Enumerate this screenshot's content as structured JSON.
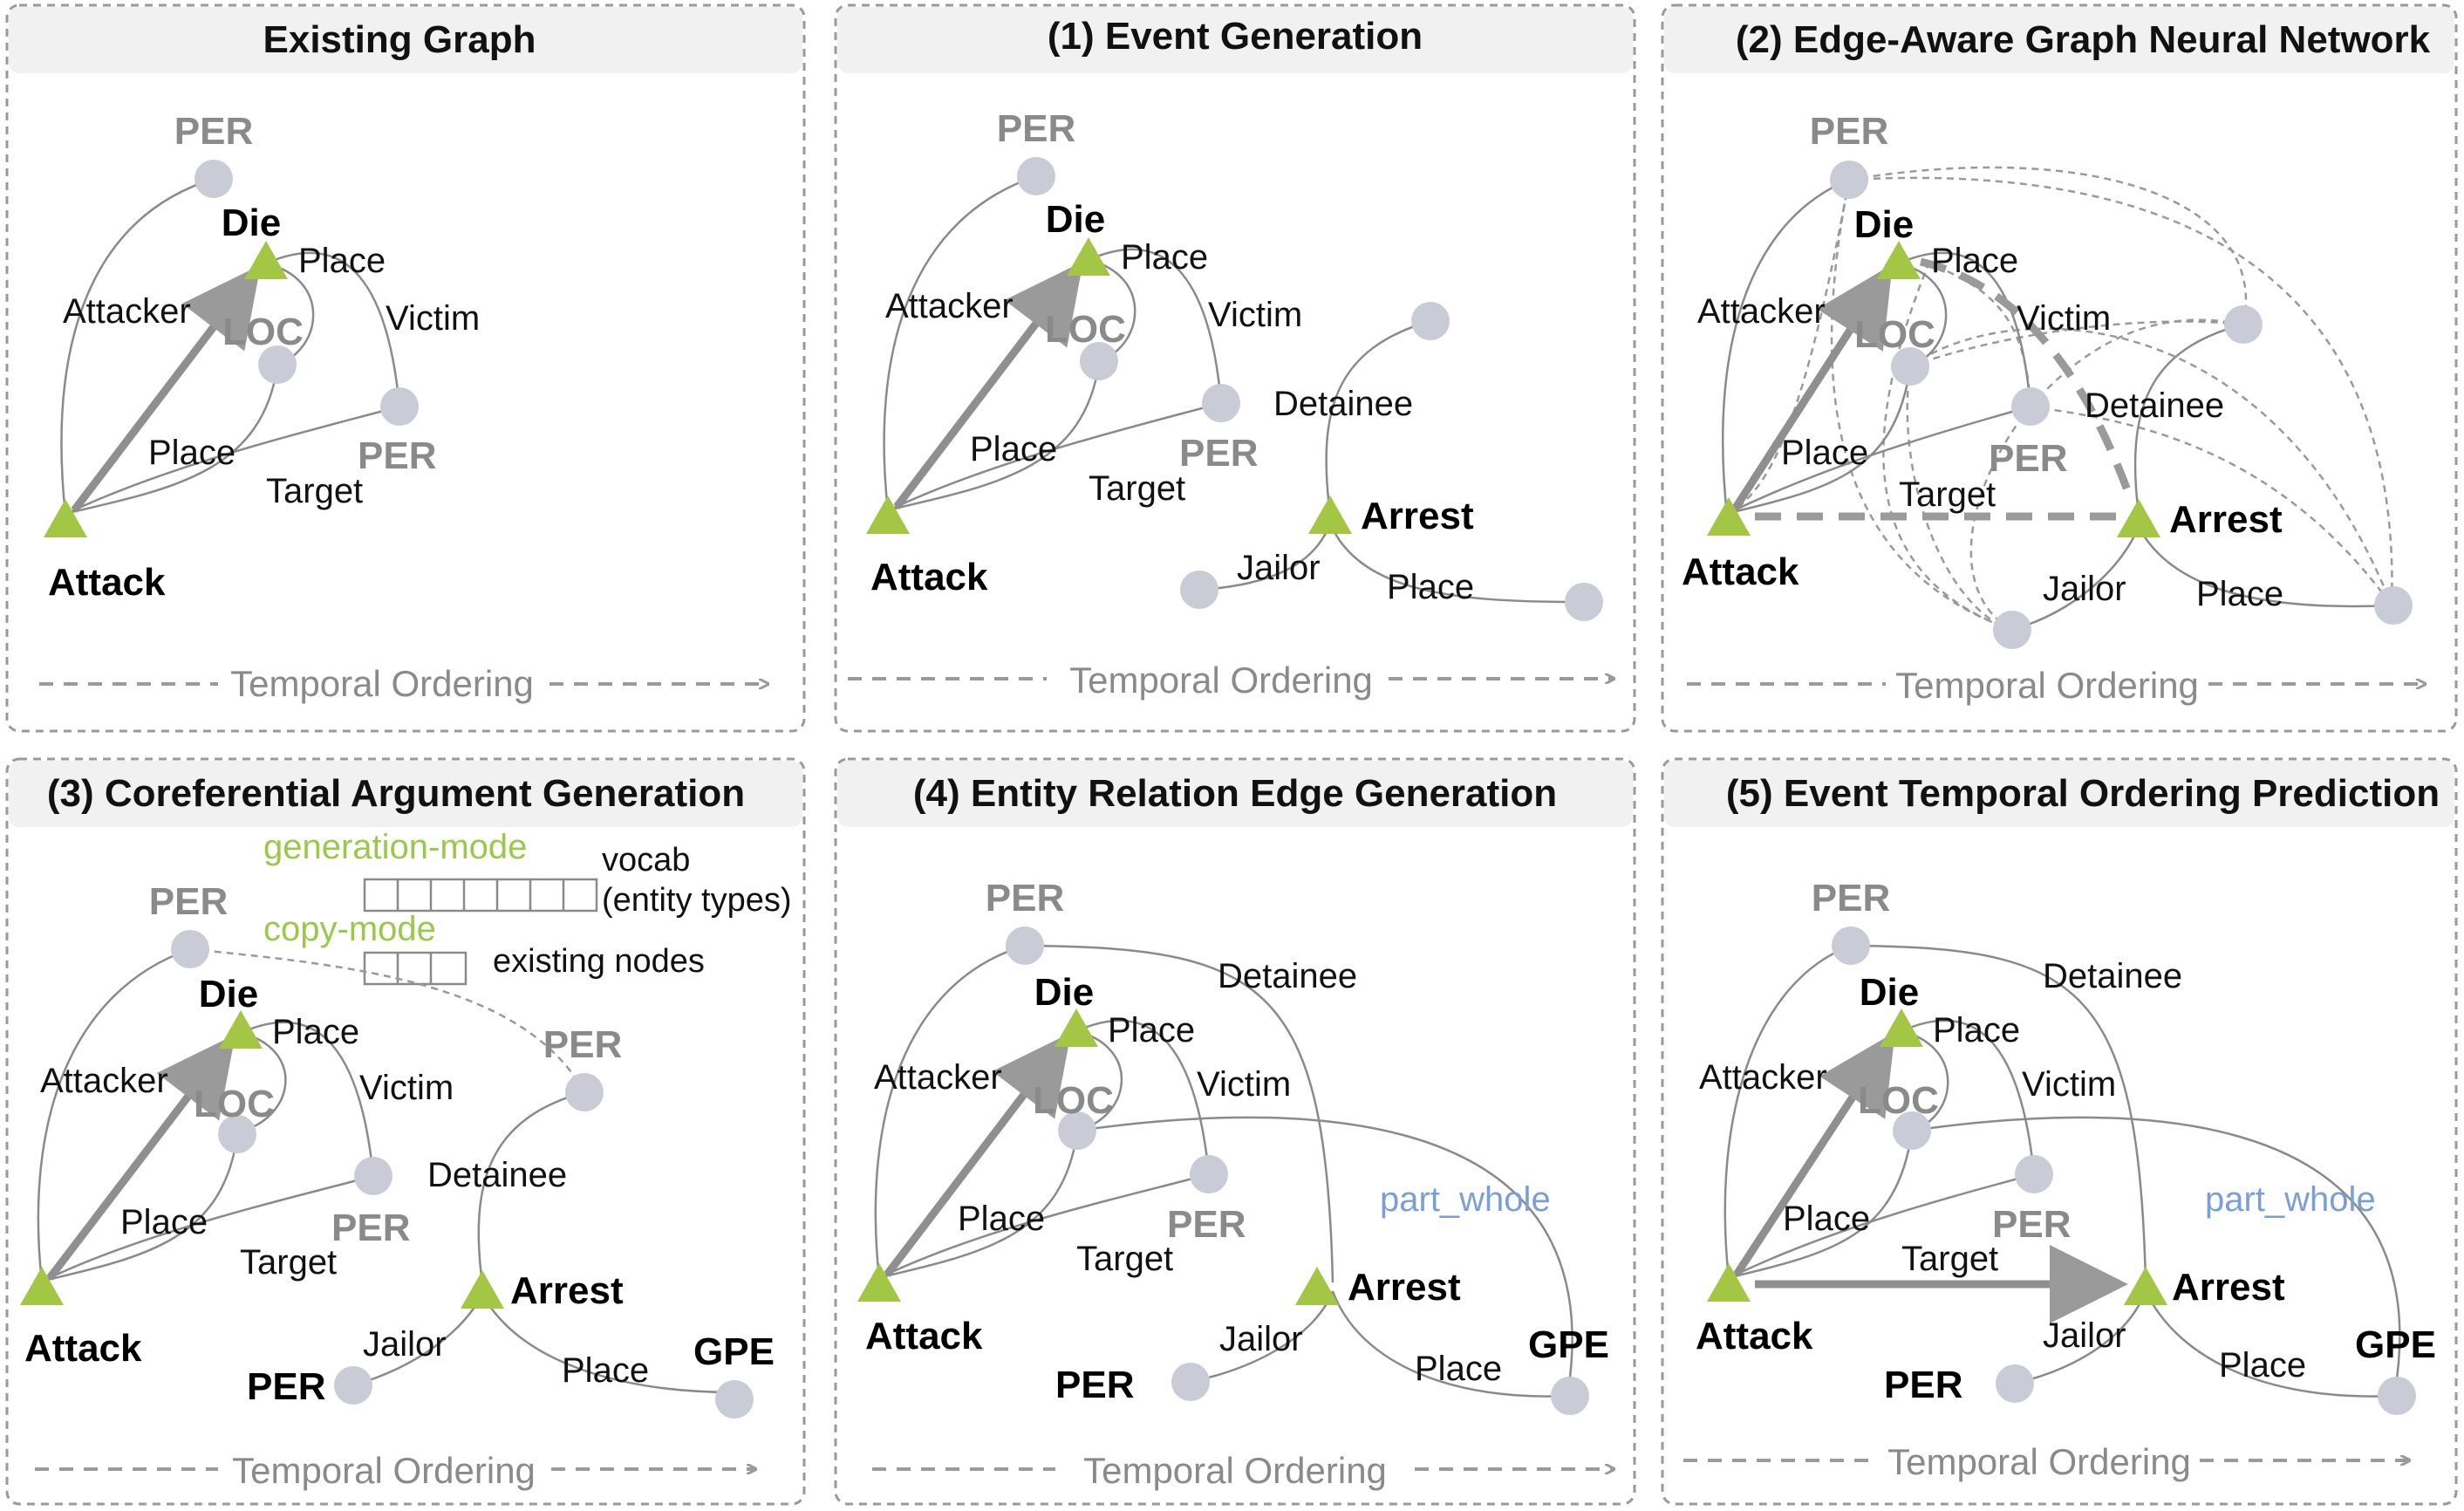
{
  "panels": [
    {
      "title": "Existing Graph",
      "temporal": "Temporal Ordering",
      "labels": {
        "per_top": "PER",
        "die": "Die",
        "place_top": "Place",
        "attacker": "Attacker",
        "victim": "Victim",
        "loc": "LOC",
        "place_bottom": "Place",
        "per_right": "PER",
        "target": "Target",
        "attack": "Attack"
      }
    },
    {
      "title": "(1) Event Generation",
      "temporal": "Temporal Ordering",
      "labels": {
        "per_top": "PER",
        "die": "Die",
        "place_top": "Place",
        "attacker": "Attacker",
        "victim": "Victim",
        "loc": "LOC",
        "place_bottom": "Place",
        "per_right": "PER",
        "target": "Target",
        "attack": "Attack",
        "detainee": "Detainee",
        "arrest": "Arrest",
        "jailor": "Jailor",
        "place_arrest": "Place"
      }
    },
    {
      "title": "(2) Edge-Aware Graph Neural Network",
      "temporal": "Temporal Ordering",
      "labels": {
        "per_top": "PER",
        "die": "Die",
        "place_top": "Place",
        "attacker": "Attacker",
        "victim": "Victim",
        "loc": "LOC",
        "place_bottom": "Place",
        "per_right": "PER",
        "target": "Target",
        "attack": "Attack",
        "detainee": "Detainee",
        "arrest": "Arrest",
        "jailor": "Jailor",
        "place_arrest": "Place"
      }
    },
    {
      "title": "(3) Coreferential Argument Generation",
      "temporal": "Temporal Ordering",
      "labels": {
        "per_top": "PER",
        "die": "Die",
        "place_top": "Place",
        "attacker": "Attacker",
        "victim": "Victim",
        "loc": "LOC",
        "place_bottom": "Place",
        "per_right": "PER",
        "target": "Target",
        "attack": "Attack",
        "detainee": "Detainee",
        "arrest": "Arrest",
        "jailor": "Jailor",
        "place_arrest": "Place",
        "per_detainee": "PER",
        "per_jailor": "PER",
        "gpe": "GPE",
        "generation_mode": "generation-mode",
        "vocab": "vocab",
        "entity_types": "(entity types)",
        "copy_mode": "copy-mode",
        "existing_nodes": "existing nodes"
      }
    },
    {
      "title": "(4) Entity Relation Edge Generation",
      "temporal": "Temporal Ordering",
      "labels": {
        "per_top": "PER",
        "die": "Die",
        "place_top": "Place",
        "attacker": "Attacker",
        "victim": "Victim",
        "loc": "LOC",
        "place_bottom": "Place",
        "per_right": "PER",
        "target": "Target",
        "attack": "Attack",
        "detainee": "Detainee",
        "arrest": "Arrest",
        "jailor": "Jailor",
        "place_arrest": "Place",
        "per_jailor": "PER",
        "gpe": "GPE",
        "part_whole": "part_whole"
      }
    },
    {
      "title": "(5) Event Temporal Ordering Prediction",
      "temporal": "Temporal Ordering",
      "labels": {
        "per_top": "PER",
        "die": "Die",
        "place_top": "Place",
        "attacker": "Attacker",
        "victim": "Victim",
        "loc": "LOC",
        "place_bottom": "Place",
        "per_right": "PER",
        "target": "Target",
        "attack": "Attack",
        "detainee": "Detainee",
        "arrest": "Arrest",
        "jailor": "Jailor",
        "place_arrest": "Place",
        "per_jailor": "PER",
        "gpe": "GPE",
        "part_whole": "part_whole"
      }
    }
  ],
  "colors": {
    "trigger": "#a3c644",
    "entity_node": "#c9ccd6",
    "edge": "#8a8a8a",
    "temporal_arrow": "#9a9a9a",
    "panel_border": "#9a9a9a",
    "title_bar": "#f1f1f1",
    "mode_label": "#9ac94a",
    "relation_label": "#7a9ed8"
  }
}
